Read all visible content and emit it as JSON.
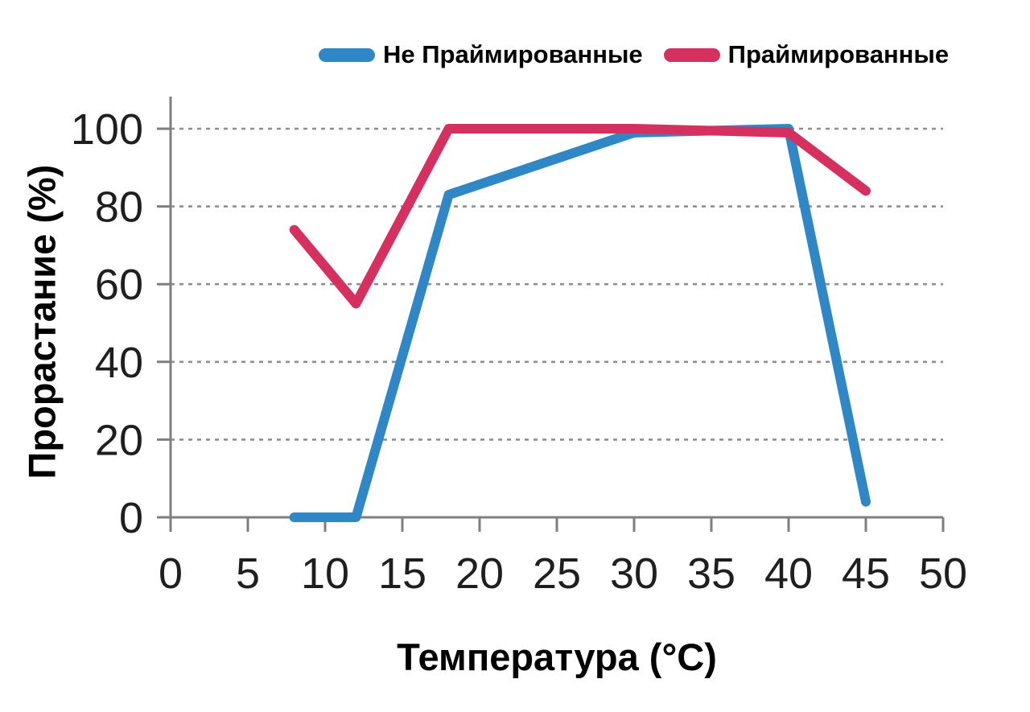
{
  "figure": {
    "background": "#ffffff"
  },
  "chart_data": {
    "type": "line",
    "title": "",
    "xlabel": "Температура (°C)",
    "ylabel": "Прорастание (%)",
    "xlim": [
      0,
      50
    ],
    "ylim": [
      0,
      100
    ],
    "x_ticks": [
      0,
      5,
      10,
      15,
      20,
      25,
      30,
      35,
      40,
      45,
      50
    ],
    "y_ticks": [
      0,
      20,
      40,
      60,
      80,
      100
    ],
    "grid": "horizontal dashed gridlines at y ticks, grid on",
    "legend_position": "top center",
    "axis_color": "#7f7f7f",
    "grid_color": "#8e8e8e",
    "tick_label_color": "#1f1f1f",
    "line_width": 12,
    "series": [
      {
        "name": "Не Праймированные",
        "color": "#2f87c5",
        "points": [
          [
            8,
            0
          ],
          [
            12,
            0
          ],
          [
            18,
            83
          ],
          [
            30,
            99
          ],
          [
            40,
            100
          ],
          [
            45,
            4
          ]
        ]
      },
      {
        "name": "Праймированные",
        "color": "#d63061",
        "points": [
          [
            8,
            74
          ],
          [
            12,
            55
          ],
          [
            18,
            100
          ],
          [
            30,
            100
          ],
          [
            40,
            99
          ],
          [
            45,
            84
          ]
        ]
      }
    ]
  }
}
